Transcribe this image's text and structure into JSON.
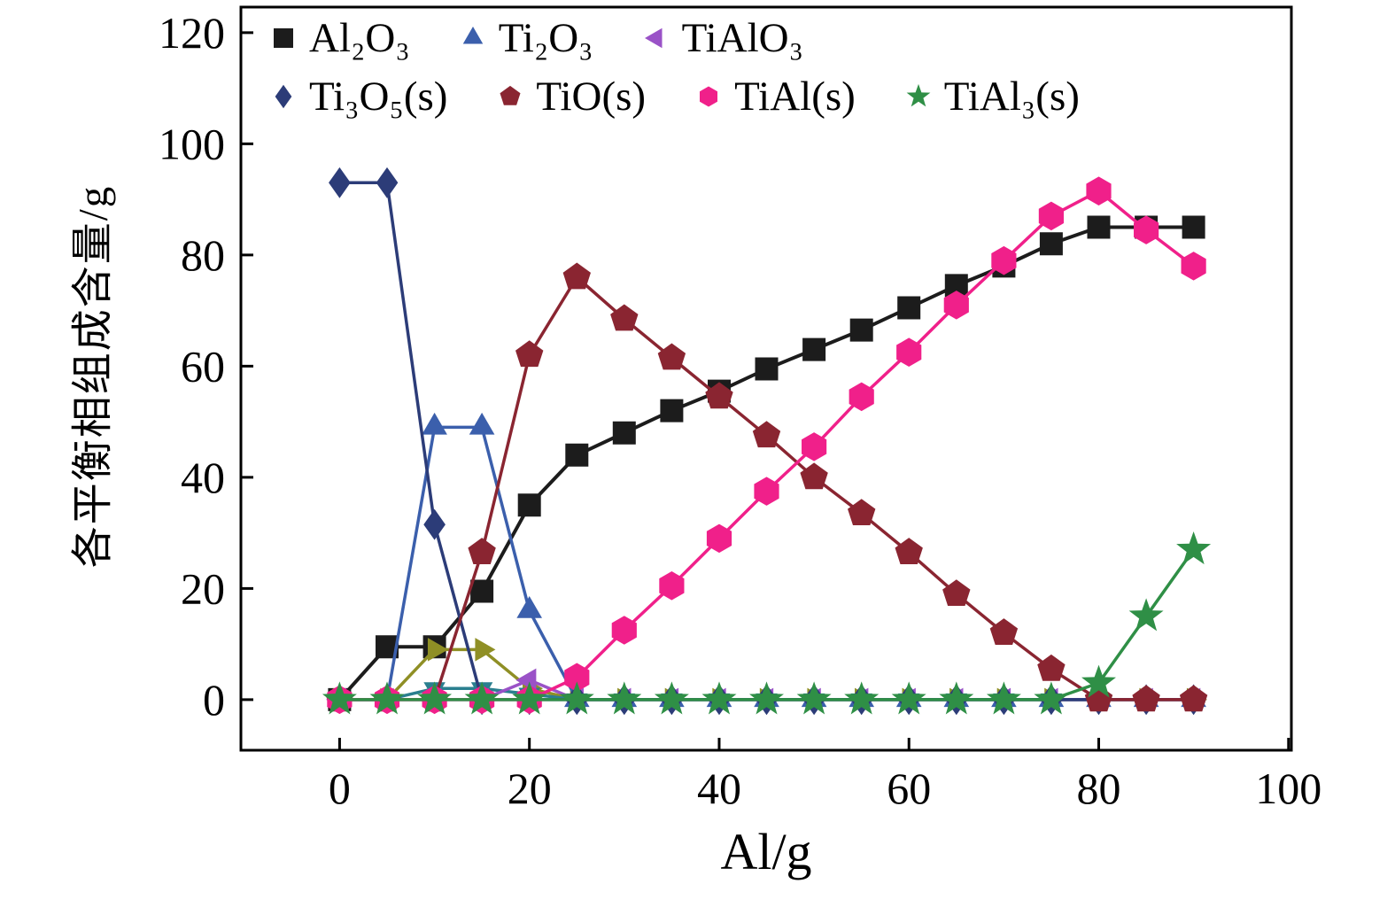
{
  "chart_data": {
    "type": "line",
    "title": "",
    "xlabel": "Al/g",
    "ylabel": "各平衡相组成含量/g",
    "xlim": [
      -10.4,
      100.3
    ],
    "ylim": [
      -9.1,
      124.6
    ],
    "x_ticks": [
      0,
      20,
      40,
      60,
      80,
      100
    ],
    "y_ticks": [
      0,
      20,
      40,
      60,
      80,
      100,
      120
    ],
    "grid": false,
    "legend_position": "top-left",
    "x": [
      0,
      5,
      10,
      15,
      20,
      25,
      30,
      35,
      40,
      45,
      50,
      55,
      60,
      65,
      70,
      75,
      80,
      85,
      90
    ],
    "series": [
      {
        "id": "Al2O3",
        "name": "Al₂O₃",
        "color": "#1c1c1c",
        "marker": "square",
        "size": 13,
        "line_width": 4,
        "in_legend": true,
        "values": [
          0,
          9.5,
          9.5,
          19.5,
          35,
          44,
          48,
          52,
          55.5,
          59.5,
          63,
          66.5,
          70.5,
          74.5,
          78,
          82,
          85,
          85,
          85
        ]
      },
      {
        "id": "olive-phase",
        "name": "",
        "color": "#8f8f25",
        "marker": "triangle-right",
        "size": 13,
        "line_width": 3.5,
        "in_legend": false,
        "values": [
          0,
          0,
          9,
          9,
          2,
          0,
          0,
          0,
          0,
          0,
          0,
          0,
          0,
          0,
          0,
          0,
          0,
          0,
          0
        ]
      },
      {
        "id": "teal-phase",
        "name": "",
        "color": "#2a7f8f",
        "marker": "triangle-down",
        "size": 12,
        "line_width": 3.5,
        "in_legend": false,
        "values": [
          0,
          0,
          2,
          2,
          1,
          0,
          0,
          0,
          0,
          0,
          0,
          0,
          0,
          0,
          0,
          0,
          0,
          0,
          0
        ]
      },
      {
        "id": "Ti2O3",
        "name": "Ti₂O₃",
        "color": "#3b5fac",
        "marker": "triangle-up",
        "size": 14,
        "line_width": 3.5,
        "in_legend": true,
        "values": [
          0,
          0,
          49,
          49,
          16,
          0,
          0,
          0,
          0,
          0,
          0,
          0,
          0,
          0,
          0,
          0,
          0,
          0,
          0
        ]
      },
      {
        "id": "TiAlO3",
        "name": "TiAlO₃",
        "color": "#9a52c7",
        "marker": "triangle-left",
        "size": 13,
        "line_width": 3.5,
        "in_legend": true,
        "values": [
          0,
          0,
          0,
          0,
          3.5,
          0,
          0,
          0,
          0,
          0,
          0,
          0,
          0,
          0,
          0,
          0,
          0,
          0,
          0
        ]
      },
      {
        "id": "Ti3O5",
        "name": "Ti₃O₅(s)",
        "color": "#2c3c78",
        "marker": "diamond",
        "size": 14.5,
        "line_width": 3.5,
        "in_legend": true,
        "values": [
          93,
          93,
          31.5,
          0,
          0,
          0,
          0,
          0,
          0,
          0,
          0,
          0,
          0,
          0,
          0,
          0,
          0,
          0,
          0
        ]
      },
      {
        "id": "TiO",
        "name": "TiO(s)",
        "color": "#8a2531",
        "marker": "pentagon",
        "size": 15,
        "line_width": 3.5,
        "in_legend": true,
        "values": [
          0,
          0,
          0,
          26.5,
          62,
          76,
          68.5,
          61.5,
          54.5,
          47.5,
          40,
          33.5,
          26.5,
          19,
          12,
          5.5,
          0,
          0,
          0
        ]
      },
      {
        "id": "TiAl",
        "name": "TiAl(s)",
        "color": "#f0208a",
        "marker": "hexagon",
        "size": 15.5,
        "line_width": 3.5,
        "in_legend": true,
        "values": [
          0,
          0,
          0,
          0,
          0,
          4,
          12.5,
          20.5,
          29,
          37.5,
          45.5,
          54.5,
          62.5,
          71,
          79,
          87,
          91.5,
          84.5,
          78
        ]
      },
      {
        "id": "TiAl3",
        "name": "TiAl₃(s)",
        "color": "#2f8f46",
        "marker": "star",
        "size": 16,
        "line_width": 3.5,
        "in_legend": true,
        "values": [
          0,
          0,
          0,
          0,
          0,
          0,
          0,
          0,
          0,
          0,
          0,
          0,
          0,
          0,
          0,
          0,
          3,
          15,
          27
        ]
      }
    ]
  }
}
